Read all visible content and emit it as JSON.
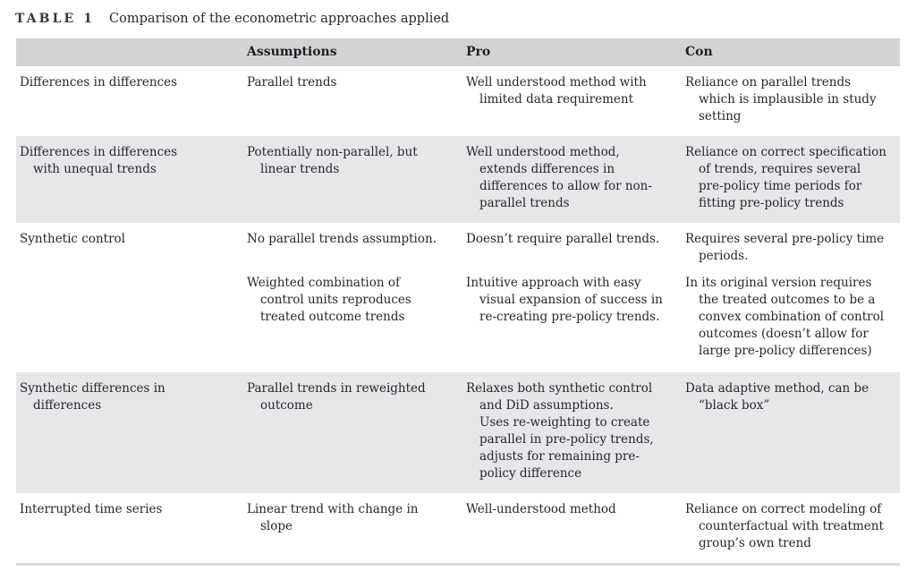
{
  "title": {
    "label": "TABLE 1",
    "text": "Comparison of the econometric approaches applied"
  },
  "colors": {
    "header_band": "#d2d3d5",
    "shaded_row": "#e6e7e9",
    "bottom_rule": "#d9dadc",
    "body_text": "#26282e",
    "caption_label": "#32363f"
  },
  "table": {
    "columns": [
      "",
      "Assumptions",
      "Pro",
      "Con"
    ],
    "rows": [
      {
        "method": "Differences in differences",
        "shaded": false,
        "assumptions": "Parallel trends",
        "pro": "Well understood method with limited data requirement",
        "con": "Reliance on parallel trends which is implausible in study setting"
      },
      {
        "method": "Differences in differences with unequal trends",
        "shaded": true,
        "assumptions": "Potentially non-parallel, but linear trends",
        "pro": "Well understood method, extends differences in differences to allow for non-parallel trends",
        "con": "Reliance on correct specification of trends, requires several pre-policy time periods for fitting pre-policy trends"
      },
      {
        "method": "Synthetic control",
        "shaded": false,
        "paragraphs": [
          {
            "assumptions": "No parallel trends assumption.",
            "pro": "Doesn’t require parallel trends.",
            "con": "Requires several pre-policy time periods."
          },
          {
            "assumptions": "Weighted combination of control units reproduces treated outcome trends",
            "pro": "Intuitive approach with easy visual expansion of success in re-creating pre-policy trends.",
            "con": "In its original version requires the treated outcomes to be a convex combination of control outcomes (doesn’t allow for large pre-policy differences)"
          }
        ]
      },
      {
        "method": "Synthetic differences in differences",
        "shaded": true,
        "assumptions": "Parallel trends in reweighted outcome",
        "pro": "Relaxes both synthetic control and DiD assumptions.\nUses re-weighting to create parallel in pre-policy trends, adjusts for remaining pre-policy difference",
        "con": "Data adaptive method, can be “black box”"
      },
      {
        "method": "Interrupted time series",
        "shaded": false,
        "assumptions": "Linear trend with change in slope",
        "pro": "Well-understood method",
        "con": "Reliance on correct modeling of counterfactual with treatment group’s own trend"
      }
    ]
  }
}
